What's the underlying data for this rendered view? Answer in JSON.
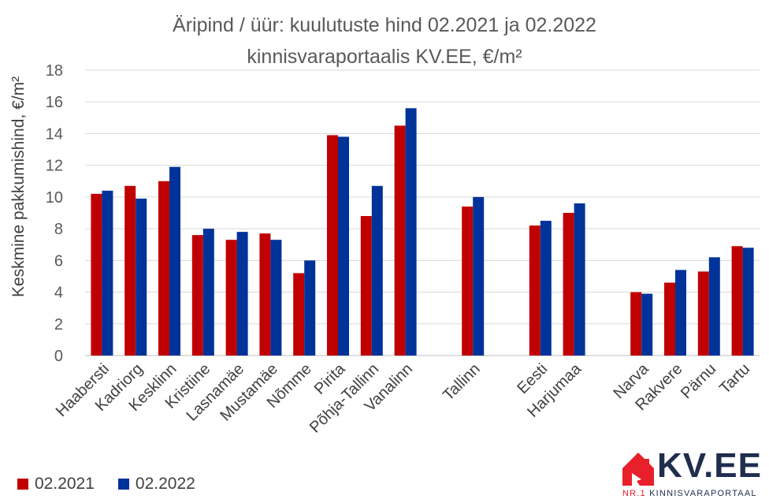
{
  "chart_data": {
    "type": "bar",
    "title_line1": "Äripind / üür: kuulutuste hind 02.2021 ja 02.2022",
    "title_line2": "kinnisvaraportaalis KV.EE, €/m²",
    "ylabel": "Keskmine pakkumishind, €/m²",
    "xlabel": "",
    "ylim": [
      0,
      18
    ],
    "yticks": [
      0,
      2,
      4,
      6,
      8,
      10,
      12,
      14,
      16,
      18
    ],
    "grid": true,
    "legend_position": "bottom-left",
    "categories": [
      "Haabersti",
      "Kadriorg",
      "Kesklinn",
      "Kristiine",
      "Lasnamäe",
      "Mustamäe",
      "Nõmme",
      "Pirita",
      "Põhja-Tallinn",
      "Vanalinn",
      "",
      "Tallinn",
      "",
      "Eesti",
      "Harjumaa",
      "",
      "Narva",
      "Rakvere",
      "Pärnu",
      "Tartu"
    ],
    "series": [
      {
        "name": "02.2021",
        "color": "#C00000",
        "values": [
          10.2,
          10.7,
          11.0,
          7.6,
          7.3,
          7.7,
          5.2,
          13.9,
          8.8,
          14.5,
          null,
          9.4,
          null,
          8.2,
          9.0,
          null,
          4.0,
          4.6,
          5.3,
          6.9
        ]
      },
      {
        "name": "02.2022",
        "color": "#003399",
        "values": [
          10.4,
          9.9,
          11.9,
          8.0,
          7.8,
          7.3,
          6.0,
          13.8,
          10.7,
          15.6,
          null,
          10.0,
          null,
          8.5,
          9.6,
          null,
          3.9,
          5.4,
          6.2,
          6.8
        ]
      }
    ]
  },
  "logo": {
    "text": "KV.EE",
    "tagline_prefix": "NR.1",
    "tagline": "KINNISVARAPORTAAL"
  }
}
